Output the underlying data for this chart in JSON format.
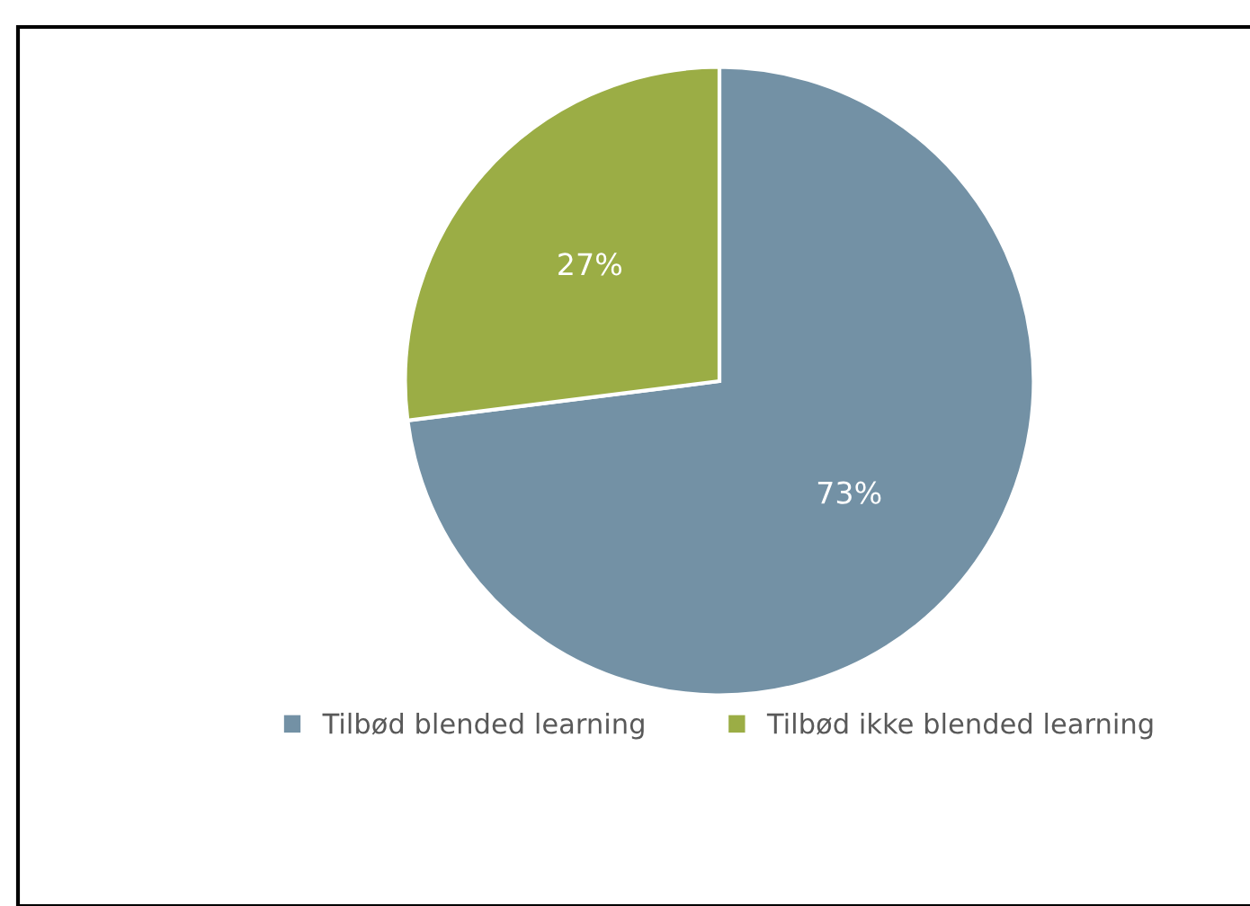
{
  "chart_data": {
    "type": "pie",
    "categories": [
      "Tilbød blended learning",
      "Tilbød ikke blended learning"
    ],
    "values": [
      73,
      27
    ],
    "colors": [
      "#7391a5",
      "#9bad45"
    ],
    "value_labels": [
      "73%",
      "27%"
    ],
    "legend": "bottom"
  }
}
